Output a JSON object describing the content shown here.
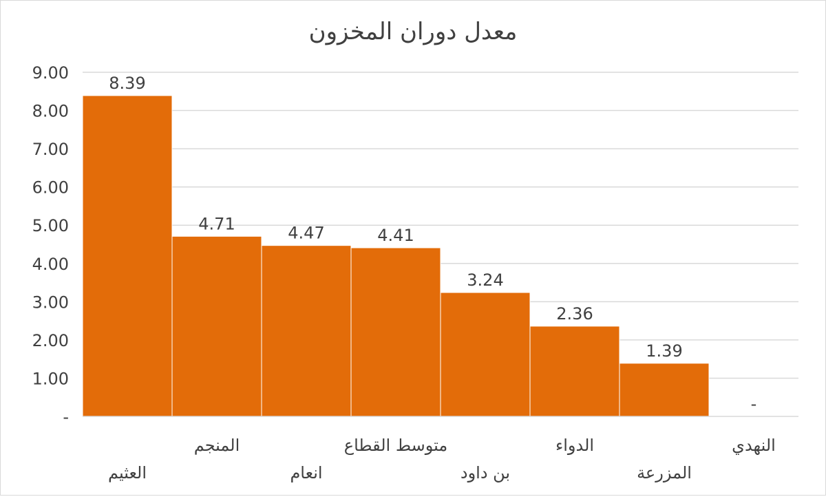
{
  "chart_data": {
    "type": "bar",
    "title": "معدل دوران المخزون",
    "categories": [
      "العثيم",
      "المنجم",
      "انعام",
      "متوسط القطاع",
      "بن داود",
      "الدواء",
      "المزرعة",
      "النهدي"
    ],
    "values": [
      8.39,
      4.71,
      4.47,
      4.41,
      3.24,
      2.36,
      1.39,
      0
    ],
    "data_labels": [
      "8.39",
      "4.71",
      "4.47",
      "4.41",
      "3.24",
      "2.36",
      "1.39",
      "-"
    ],
    "ylim": [
      0,
      9
    ],
    "y_ticks": [
      "-",
      "1.00",
      "2.00",
      "3.00",
      "4.00",
      "5.00",
      "6.00",
      "7.00",
      "8.00",
      "9.00"
    ],
    "xlabel": "",
    "ylabel": "",
    "grid": true,
    "bar_color": "#E36C09",
    "gap": 0
  }
}
